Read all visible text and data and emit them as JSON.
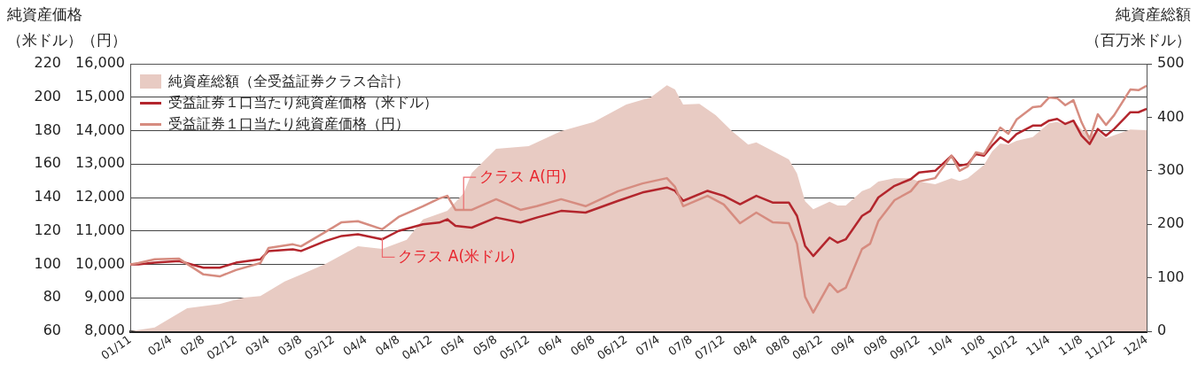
{
  "chart_data": {
    "type": "line",
    "ylabel": "純資産価格（米ドル）",
    "y3label": "（円）",
    "y2label": "純資産総額（百万米ドル）",
    "x": [
      "2001-11",
      "2001-12",
      "2002-02",
      "2002-05",
      "2002-08",
      "2002-10",
      "2002-12",
      "2003-03",
      "2003-04",
      "2003-07",
      "2003-08",
      "2003-11",
      "2004-01",
      "2004-03",
      "2004-06",
      "2004-08",
      "2004-11",
      "2005-01",
      "2005-02",
      "2005-03",
      "2005-05",
      "2005-08",
      "2005-11",
      "2006-01",
      "2006-04",
      "2006-07",
      "2006-11",
      "2007-02",
      "2007-05",
      "2007-06",
      "2007-07",
      "2007-10",
      "2007-12",
      "2008-02",
      "2008-04",
      "2008-06",
      "2008-08",
      "2008-09",
      "2008-10",
      "2008-11",
      "2009-01",
      "2009-02",
      "2009-03",
      "2009-05",
      "2009-06",
      "2009-07",
      "2009-09",
      "2009-11",
      "2009-12",
      "2010-02",
      "2010-04",
      "2010-05",
      "2010-06",
      "2010-07",
      "2010-08",
      "2010-09",
      "2010-10",
      "2010-11",
      "2010-12",
      "2011-02",
      "2011-03",
      "2011-04",
      "2011-05",
      "2011-06",
      "2011-07",
      "2011-08",
      "2011-09",
      "2011-10",
      "2011-11",
      "2011-12",
      "2012-02",
      "2012-03",
      "2012-04"
    ],
    "series": [
      {
        "name": "純資産総額（全受益証券クラス合計）",
        "type": "area",
        "axis": "y2",
        "color": "#e8cbc3",
        "x": [
          "2001-11",
          "2002-02",
          "2002-06",
          "2002-10",
          "2003-01",
          "2003-03",
          "2003-06",
          "2003-08",
          "2003-11",
          "2004-03",
          "2004-06",
          "2004-09",
          "2004-11",
          "2005-02",
          "2005-04",
          "2005-05",
          "2005-08",
          "2005-12",
          "2006-04",
          "2006-08",
          "2006-12",
          "2007-03",
          "2007-05",
          "2007-06",
          "2007-07",
          "2007-09",
          "2007-11",
          "2008-01",
          "2008-03",
          "2008-04",
          "2008-08",
          "2008-09",
          "2008-10",
          "2008-11",
          "2009-01",
          "2009-02",
          "2009-03",
          "2009-05",
          "2009-06",
          "2009-07",
          "2009-09",
          "2009-11",
          "2009-12",
          "2010-02",
          "2010-04",
          "2010-05",
          "2010-06",
          "2010-08",
          "2010-09",
          "2010-10",
          "2010-11",
          "2010-12",
          "2011-02",
          "2011-04",
          "2011-05",
          "2011-06",
          "2011-07",
          "2011-08",
          "2011-09",
          "2011-10",
          "2011-11",
          "2012-02",
          "2012-04"
        ],
        "values": [
          0,
          7,
          43,
          51,
          63,
          66,
          93,
          106,
          126,
          159,
          154,
          171,
          209,
          225,
          258,
          296,
          341,
          346,
          374,
          391,
          424,
          437,
          460,
          452,
          424,
          425,
          404,
          374,
          349,
          353,
          321,
          295,
          243,
          228,
          242,
          235,
          235,
          262,
          268,
          280,
          286,
          286,
          280,
          275,
          286,
          281,
          286,
          311,
          336,
          351,
          349,
          356,
          363,
          389,
          391,
          387,
          394,
          377,
          366,
          374,
          361,
          377,
          376
        ]
      },
      {
        "name": "受益証券１口当たり純資産価格（米ドル）",
        "color": "#b3262d",
        "values": [
          100,
          100,
          101,
          102,
          98,
          98,
          101,
          103,
          108,
          109,
          108,
          114,
          117,
          118,
          115,
          120,
          124,
          125,
          127,
          123,
          122,
          128,
          125,
          128,
          132,
          131,
          138,
          143,
          146,
          144,
          138,
          144,
          141,
          136,
          141,
          137,
          137,
          129,
          111,
          105,
          116,
          113,
          115,
          129,
          132,
          140,
          147,
          151,
          155,
          156,
          165,
          159,
          160,
          166,
          165,
          171,
          176,
          173,
          178,
          183,
          183,
          186,
          187,
          184,
          186,
          177,
          172,
          181,
          177,
          181,
          191,
          191,
          193
        ]
      },
      {
        "name": "受益証券１口当たり純資産価格（円）",
        "axis": "y3",
        "color": "#d68c80",
        "values": [
          10000,
          10040,
          10150,
          10170,
          9700,
          9640,
          9830,
          10040,
          10490,
          10600,
          10540,
          10970,
          11260,
          11290,
          11050,
          11420,
          11740,
          11970,
          12050,
          11630,
          11630,
          11950,
          11630,
          11740,
          11950,
          11740,
          12190,
          12420,
          12580,
          12320,
          11740,
          12050,
          11790,
          11230,
          11550,
          11260,
          11230,
          10620,
          9030,
          8560,
          9430,
          9170,
          9300,
          10460,
          10620,
          11290,
          11920,
          12190,
          12480,
          12580,
          13250,
          12800,
          12930,
          13350,
          13300,
          13700,
          14090,
          13910,
          14330,
          14700,
          14730,
          14990,
          14970,
          14760,
          14910,
          14250,
          13750,
          14490,
          14170,
          14460,
          15230,
          15210,
          15340
        ]
      }
    ],
    "xlim": [
      "2001-11",
      "2012-04"
    ],
    "xticks": [
      {
        "value": "2001-11",
        "label": "01/11"
      },
      {
        "value": "2002-04",
        "label": "02/4"
      },
      {
        "value": "2002-08",
        "label": "02/8"
      },
      {
        "value": "2002-12",
        "label": "02/12"
      },
      {
        "value": "2003-04",
        "label": "03/4"
      },
      {
        "value": "2003-08",
        "label": "03/8"
      },
      {
        "value": "2003-12",
        "label": "03/12"
      },
      {
        "value": "2004-04",
        "label": "04/4"
      },
      {
        "value": "2004-08",
        "label": "04/8"
      },
      {
        "value": "2004-12",
        "label": "04/12"
      },
      {
        "value": "2005-04",
        "label": "05/4"
      },
      {
        "value": "2005-08",
        "label": "05/8"
      },
      {
        "value": "2005-12",
        "label": "05/12"
      },
      {
        "value": "2006-04",
        "label": "06/4"
      },
      {
        "value": "2006-08",
        "label": "06/8"
      },
      {
        "value": "2006-12",
        "label": "06/12"
      },
      {
        "value": "2007-04",
        "label": "07/4"
      },
      {
        "value": "2007-08",
        "label": "07/8"
      },
      {
        "value": "2007-12",
        "label": "07/12"
      },
      {
        "value": "2008-04",
        "label": "08/4"
      },
      {
        "value": "2008-08",
        "label": "08/8"
      },
      {
        "value": "2008-12",
        "label": "08/12"
      },
      {
        "value": "2009-04",
        "label": "09/4"
      },
      {
        "value": "2009-08",
        "label": "09/8"
      },
      {
        "value": "2009-12",
        "label": "09/12"
      },
      {
        "value": "2010-04",
        "label": "10/4"
      },
      {
        "value": "2010-08",
        "label": "10/8"
      },
      {
        "value": "2010-12",
        "label": "10/12"
      },
      {
        "value": "2011-04",
        "label": "11/4"
      },
      {
        "value": "2011-08",
        "label": "11/8"
      },
      {
        "value": "2011-12",
        "label": "11/12"
      },
      {
        "value": "2012-04",
        "label": "12/4"
      }
    ],
    "ylim": [
      60,
      220
    ],
    "yticks": [
      60,
      80,
      100,
      120,
      140,
      160,
      180,
      200,
      220
    ],
    "y3lim": [
      8000,
      16000
    ],
    "y3ticks": [
      {
        "value": 8000,
        "label": "8,000"
      },
      {
        "value": 9000,
        "label": "9,000"
      },
      {
        "value": 10000,
        "label": "10,000"
      },
      {
        "value": 11000,
        "label": "11,000"
      },
      {
        "value": 12000,
        "label": "12,000"
      },
      {
        "value": 13000,
        "label": "13,000"
      },
      {
        "value": 14000,
        "label": "14,000"
      },
      {
        "value": 15000,
        "label": "15,000"
      },
      {
        "value": 16000,
        "label": "16,000"
      }
    ],
    "y2lim": [
      0,
      500
    ],
    "y2ticks": [
      0,
      100,
      200,
      300,
      400,
      500
    ],
    "annotations": [
      {
        "text": "クラス A(円)",
        "x": "2005-04",
        "y": 133
      },
      {
        "text": "クラス A(米ドル)",
        "x": "2004-06",
        "y": 116
      }
    ],
    "grid": "y",
    "legend": "top left",
    "marker": "none",
    "line_style": "solid"
  }
}
